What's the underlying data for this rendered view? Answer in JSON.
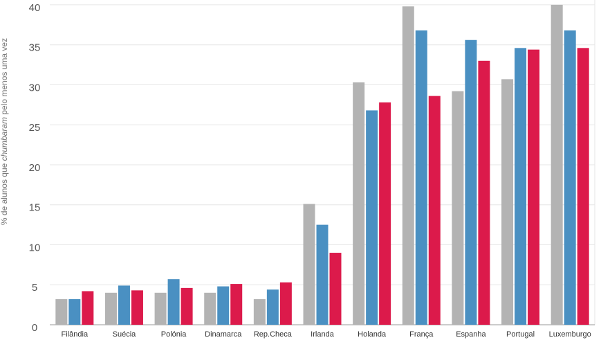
{
  "chart_data": {
    "type": "bar",
    "y_label": [
      "% de alunos que",
      "chumbaram",
      "pelo menos uma vez"
    ],
    "categories": [
      "Filândia",
      "Suécia",
      "Polónia",
      "Dinamarca",
      "Rep.Checa",
      "Irlanda",
      "Holanda",
      "França",
      "Espanha",
      "Portugal",
      "Luxemburgo"
    ],
    "series": [
      {
        "color": "#b3b3b3",
        "values": [
          3.2,
          4.0,
          4.0,
          4.0,
          3.2,
          15.1,
          30.3,
          39.8,
          29.2,
          30.7,
          40.0
        ]
      },
      {
        "color": "#4a90c2",
        "values": [
          3.2,
          4.9,
          5.7,
          4.8,
          4.4,
          12.5,
          26.8,
          36.8,
          35.6,
          34.6,
          36.8
        ]
      },
      {
        "color": "#dc1a4b",
        "values": [
          4.2,
          4.3,
          4.6,
          5.1,
          5.3,
          9.0,
          27.8,
          28.6,
          33.0,
          34.4,
          34.6
        ]
      }
    ],
    "ylim": [
      0,
      40.6
    ],
    "yticks": [
      0,
      5,
      10,
      15,
      20,
      25,
      30,
      35,
      40
    ],
    "grid": true
  }
}
